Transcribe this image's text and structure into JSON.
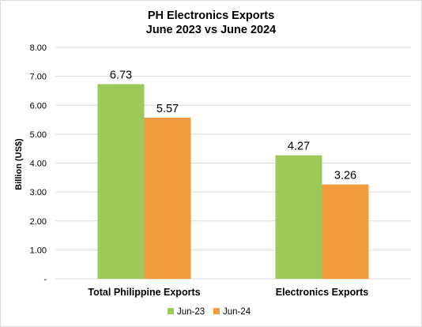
{
  "chart_data": {
    "type": "bar",
    "title": [
      "PH Electronics Exports",
      "June 2023 vs June 2024"
    ],
    "ylabel": "Billion (US$)",
    "xlabel": "",
    "categories": [
      "Total Philippine Exports",
      "Electronics Exports"
    ],
    "series": [
      {
        "name": "Jun-23",
        "values": [
          6.73,
          4.27
        ],
        "labels": [
          "6.73",
          "4.27"
        ],
        "color": "#9dc85a"
      },
      {
        "name": "Jun-24",
        "values": [
          5.57,
          3.26
        ],
        "labels": [
          "5.57",
          "3.26"
        ],
        "color": "#f19a3e"
      }
    ],
    "ylim": [
      0,
      8
    ],
    "yticks": [
      {
        "value": 0,
        "label": "-"
      },
      {
        "value": 1,
        "label": "1.00"
      },
      {
        "value": 2,
        "label": "2.00"
      },
      {
        "value": 3,
        "label": "3.00"
      },
      {
        "value": 4,
        "label": "4.00"
      },
      {
        "value": 5,
        "label": "5.00"
      },
      {
        "value": 6,
        "label": "6.00"
      },
      {
        "value": 7,
        "label": "7.00"
      },
      {
        "value": 8,
        "label": "8.00"
      }
    ],
    "grid": true,
    "legend_position": "bottom"
  }
}
